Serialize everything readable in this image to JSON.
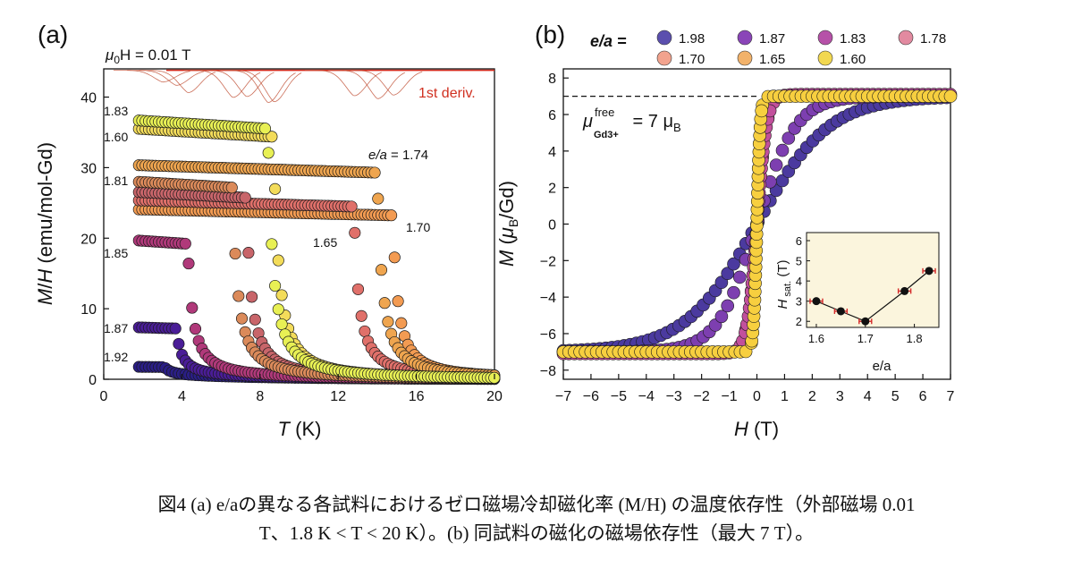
{
  "figure": {
    "panel_a_label": "(a)",
    "panel_b_label": "(b)",
    "field_mu": "μ",
    "field_sub": "0",
    "field_rest": "H = 0.01 T",
    "deriv_label": "1st deriv.",
    "ea_prefix": "e/a",
    "ea_value": " = 1.74",
    "legend_title": "e/a =",
    "mu_free_mu": "μ",
    "mu_free_sup": "free",
    "mu_free_sub": "Gd3+",
    "mu_free_rest": " = 7 μ",
    "mu_free_B": "B",
    "curve_labels_a": [
      "1.83",
      "1.60",
      "1.81",
      "1.85",
      "1.87",
      "1.92",
      "1.65",
      "1.70"
    ]
  },
  "chart_data": [
    {
      "type": "scatter",
      "title": "(a)",
      "xlabel": "T (K)",
      "ylabel": "M/H (emu/mol-Gd)",
      "xlim": [
        0,
        20
      ],
      "ylim": [
        0,
        44
      ],
      "xticks": [
        "0",
        "4",
        "8",
        "12",
        "16",
        "20"
      ],
      "yticks": [
        "0",
        "10",
        "20",
        "30",
        "40"
      ],
      "series": [
        {
          "name": "1.92",
          "color": "#2a1e86",
          "plateau": 1.8,
          "tc": 3.0
        },
        {
          "name": "1.87",
          "color": "#4a1d97",
          "plateau": 7.5,
          "tc": 3.7
        },
        {
          "name": "1.85",
          "color": "#b0397a",
          "plateau": 20.0,
          "tc": 4.3
        },
        {
          "name": "1.83",
          "color": "#e8f054",
          "plateau": 37.0,
          "tc": 8.4
        },
        {
          "name": "1.81",
          "color": "#db8a5a",
          "plateau": 28.3,
          "tc": 6.6
        },
        {
          "name": "1.78",
          "color": "#c8656a",
          "plateau": 26.8,
          "tc": 7.3
        },
        {
          "name": "1.74",
          "color": "#efa54f",
          "plateau": 30.5,
          "tc": 14.0
        },
        {
          "name": "1.70",
          "color": "#f39b52",
          "plateau": 24.2,
          "tc": 14.8
        },
        {
          "name": "1.65",
          "color": "#e0706a",
          "plateau": 25.5,
          "tc": 12.8
        },
        {
          "name": "1.60",
          "color": "#f3dc5a",
          "plateau": 35.8,
          "tc": 8.7
        }
      ]
    },
    {
      "type": "scatter",
      "title": "(b)",
      "xlabel": "H (T)",
      "ylabel": "M (μB/Gd)",
      "xlim": [
        -7,
        7
      ],
      "ylim": [
        -8.5,
        8.5
      ],
      "xticks": [
        "−7",
        "−6",
        "−5",
        "−4",
        "−3",
        "−2",
        "−1",
        "0",
        "1",
        "2",
        "3",
        "4",
        "5",
        "6",
        "7"
      ],
      "yticks": [
        "−8",
        "−6",
        "−4",
        "−2",
        "0",
        "2",
        "4",
        "6",
        "8"
      ],
      "reference_line": 7,
      "legend": [
        {
          "name": "1.98",
          "color": "#5b4fae"
        },
        {
          "name": "1.87",
          "color": "#8a45b8"
        },
        {
          "name": "1.83",
          "color": "#b651a8"
        },
        {
          "name": "1.78",
          "color": "#e28aa0"
        },
        {
          "name": "1.70",
          "color": "#f2a38e"
        },
        {
          "name": "1.65",
          "color": "#f2b26a"
        },
        {
          "name": "1.60",
          "color": "#f2d850"
        }
      ],
      "series": [
        {
          "name": "1.98",
          "color": "#4b3a9f",
          "msat": 7.0,
          "h0": 2.6
        },
        {
          "name": "1.87",
          "color": "#7d3fb0",
          "msat": 7.0,
          "h0": 1.4
        },
        {
          "name": "1.83",
          "color": "#c2509c",
          "msat": 7.1,
          "h0": 0.35
        },
        {
          "name": "1.60",
          "color": "#f7cf3f",
          "msat": 7.0,
          "h0": 0.12
        }
      ]
    },
    {
      "type": "line",
      "title": "inset",
      "xlabel": "e/a",
      "ylabel": "H sat. (T)",
      "xlim": [
        1.58,
        1.85
      ],
      "ylim": [
        1.7,
        6.4
      ],
      "xticks": [
        "1.6",
        "1.7",
        "1.8"
      ],
      "yticks": [
        "2",
        "3",
        "4",
        "5",
        "6"
      ],
      "x": [
        1.6,
        1.65,
        1.7,
        1.78,
        1.83
      ],
      "values": [
        3.0,
        2.5,
        2.0,
        3.5,
        4.5
      ]
    }
  ],
  "caption": {
    "line1": "図4 (a) e/aの異なる各試料におけるゼロ磁場冷却磁化率 (M/H) の温度依存性（外部磁場 0.01",
    "line2": "T、1.8 K < T < 20 K）。(b) 同試料の磁化の磁場依存性（最大 7 T）。"
  }
}
